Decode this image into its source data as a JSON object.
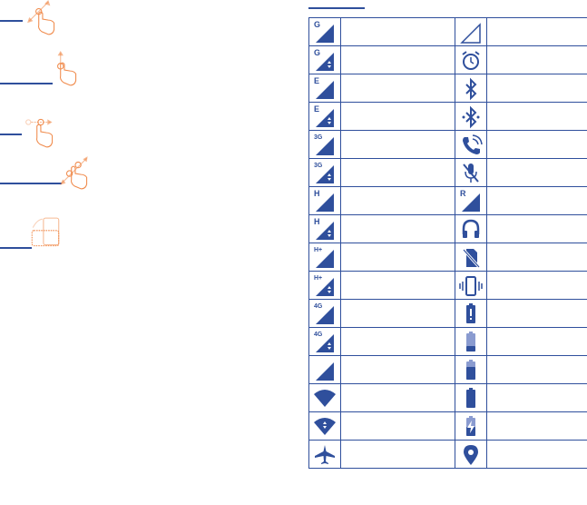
{
  "colors": {
    "accent": "#2f4f9c",
    "gesture": "#f08a4b"
  },
  "gestures": [
    "drag-gesture-icon",
    "slide-up-gesture-icon",
    "swipe-right-gesture-icon",
    "pinch-gesture-icon",
    "rotate-gesture-icon"
  ],
  "status_table": {
    "rows": [
      {
        "left": {
          "icon": "signal-gprs-icon",
          "label": "G"
        },
        "right": {
          "icon": "signal-empty-icon"
        }
      },
      {
        "left": {
          "icon": "signal-gprs-data-icon",
          "label": "G",
          "data": true
        },
        "right": {
          "icon": "alarm-icon"
        }
      },
      {
        "left": {
          "icon": "signal-edge-icon",
          "label": "E"
        },
        "right": {
          "icon": "bluetooth-icon"
        }
      },
      {
        "left": {
          "icon": "signal-edge-data-icon",
          "label": "E",
          "data": true
        },
        "right": {
          "icon": "bluetooth-connected-icon"
        }
      },
      {
        "left": {
          "icon": "signal-3g-icon",
          "label": "3G"
        },
        "right": {
          "icon": "phone-call-icon"
        }
      },
      {
        "left": {
          "icon": "signal-3g-data-icon",
          "label": "3G",
          "data": true
        },
        "right": {
          "icon": "mic-off-icon"
        }
      },
      {
        "left": {
          "icon": "signal-hspa-icon",
          "label": "H"
        },
        "right": {
          "icon": "signal-roaming-icon",
          "label": "R"
        }
      },
      {
        "left": {
          "icon": "signal-hspa-data-icon",
          "label": "H",
          "data": true
        },
        "right": {
          "icon": "headphones-icon"
        }
      },
      {
        "left": {
          "icon": "signal-hspa-plus-icon",
          "label": "H+"
        },
        "right": {
          "icon": "no-sim-icon"
        }
      },
      {
        "left": {
          "icon": "signal-hspa-plus-data-icon",
          "label": "H+",
          "data": true
        },
        "right": {
          "icon": "vibrate-icon"
        }
      },
      {
        "left": {
          "icon": "signal-4g-icon",
          "label": "4G"
        },
        "right": {
          "icon": "battery-alert-icon"
        }
      },
      {
        "left": {
          "icon": "signal-4g-data-icon",
          "label": "4G",
          "data": true
        },
        "right": {
          "icon": "battery-low-icon",
          "level": 0.3
        }
      },
      {
        "left": {
          "icon": "signal-full-icon"
        },
        "right": {
          "icon": "battery-half-icon",
          "level": 0.7
        }
      },
      {
        "left": {
          "icon": "wifi-icon"
        },
        "right": {
          "icon": "battery-full-icon",
          "level": 1
        }
      },
      {
        "left": {
          "icon": "wifi-data-icon",
          "data": true
        },
        "right": {
          "icon": "battery-charging-icon",
          "level": 0.5
        }
      },
      {
        "left": {
          "icon": "airplane-mode-icon"
        },
        "right": {
          "icon": "location-icon"
        }
      }
    ]
  }
}
